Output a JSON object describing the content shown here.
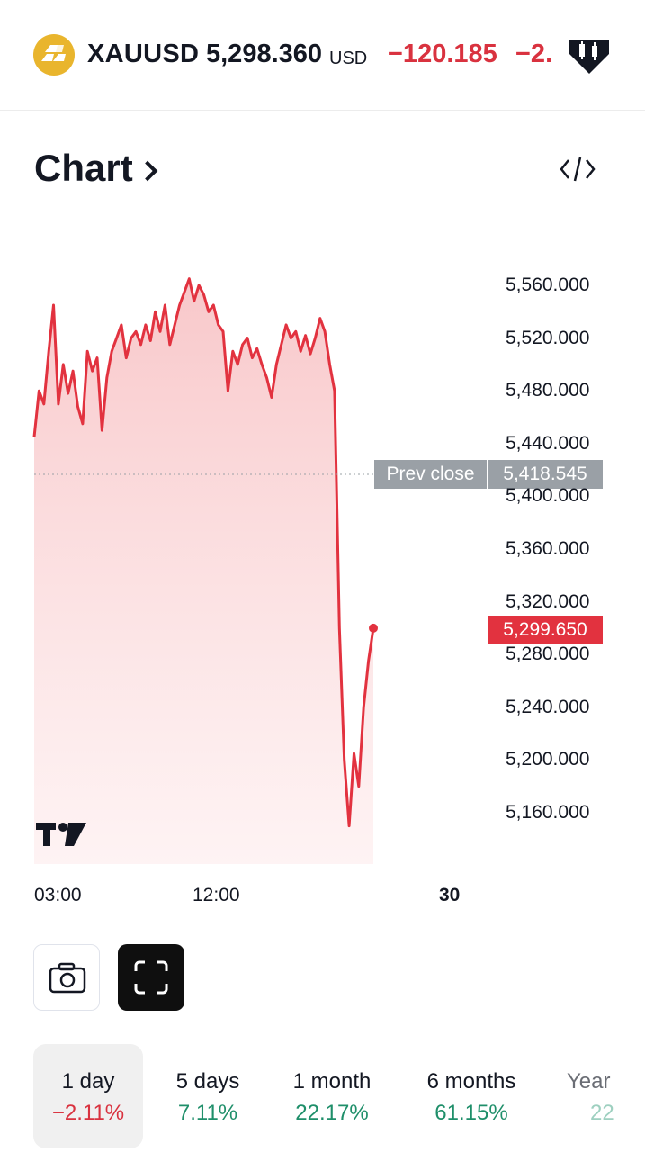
{
  "header": {
    "symbol": "XAUUSD",
    "price": "5,298.360",
    "currency": "USD",
    "change": "−120.185",
    "change_pct": "−2.",
    "icon": "gold-bars-icon",
    "badge_icon": "tradingview-candles-icon"
  },
  "section": {
    "title": "Chart",
    "embed_icon": "code-embed-icon"
  },
  "chart_data": {
    "type": "area",
    "series_color": "#e2323f",
    "y_ticks": [
      "5,560.000",
      "5,520.000",
      "5,480.000",
      "5,440.000",
      "5,400.000",
      "5,360.000",
      "5,320.000",
      "5,280.000",
      "5,240.000",
      "5,200.000",
      "5,160.000"
    ],
    "x_ticks": [
      "03:00",
      "12:00",
      "30"
    ],
    "prev_close": {
      "label": "Prev close",
      "value": "5,418.545",
      "y": 5418.545
    },
    "last": {
      "value": "5,299.650",
      "y": 5299.65
    },
    "ylim": [
      5146,
      5600
    ],
    "points": [
      [
        0,
        5445
      ],
      [
        1,
        5480
      ],
      [
        2,
        5470
      ],
      [
        3,
        5510
      ],
      [
        4,
        5545
      ],
      [
        5,
        5470
      ],
      [
        6,
        5500
      ],
      [
        7,
        5478
      ],
      [
        8,
        5495
      ],
      [
        9,
        5468
      ],
      [
        10,
        5455
      ],
      [
        11,
        5510
      ],
      [
        12,
        5495
      ],
      [
        13,
        5505
      ],
      [
        14,
        5450
      ],
      [
        15,
        5490
      ],
      [
        16,
        5510
      ],
      [
        17,
        5520
      ],
      [
        18,
        5530
      ],
      [
        19,
        5505
      ],
      [
        20,
        5520
      ],
      [
        21,
        5525
      ],
      [
        22,
        5515
      ],
      [
        23,
        5530
      ],
      [
        24,
        5518
      ],
      [
        25,
        5540
      ],
      [
        26,
        5525
      ],
      [
        27,
        5545
      ],
      [
        28,
        5515
      ],
      [
        29,
        5530
      ],
      [
        30,
        5545
      ],
      [
        31,
        5555
      ],
      [
        32,
        5565
      ],
      [
        33,
        5548
      ],
      [
        34,
        5560
      ],
      [
        35,
        5553
      ],
      [
        36,
        5540
      ],
      [
        37,
        5545
      ],
      [
        38,
        5530
      ],
      [
        39,
        5525
      ],
      [
        40,
        5480
      ],
      [
        41,
        5510
      ],
      [
        42,
        5500
      ],
      [
        43,
        5515
      ],
      [
        44,
        5520
      ],
      [
        45,
        5505
      ],
      [
        46,
        5512
      ],
      [
        47,
        5500
      ],
      [
        48,
        5490
      ],
      [
        49,
        5475
      ],
      [
        50,
        5500
      ],
      [
        51,
        5515
      ],
      [
        52,
        5530
      ],
      [
        53,
        5520
      ],
      [
        54,
        5525
      ],
      [
        55,
        5510
      ],
      [
        56,
        5522
      ],
      [
        57,
        5508
      ],
      [
        58,
        5520
      ],
      [
        59,
        5535
      ],
      [
        60,
        5525
      ],
      [
        61,
        5500
      ],
      [
        62,
        5480
      ],
      [
        63,
        5300
      ],
      [
        64,
        5200
      ],
      [
        65,
        5150
      ],
      [
        66,
        5205
      ],
      [
        67,
        5180
      ],
      [
        68,
        5240
      ],
      [
        69,
        5275
      ],
      [
        70,
        5300
      ]
    ]
  },
  "chart_toolbar": {
    "snapshot_icon": "camera-icon",
    "fullscreen_icon": "fullscreen-icon",
    "watermark": "TV"
  },
  "range_tabs": [
    {
      "label": "1 day",
      "pct": "−2.11%",
      "direction": "neg",
      "active": true
    },
    {
      "label": "5 days",
      "pct": "7.11%",
      "direction": "pos",
      "active": false
    },
    {
      "label": "1 month",
      "pct": "22.17%",
      "direction": "pos",
      "active": false
    },
    {
      "label": "6 months",
      "pct": "61.15%",
      "direction": "pos",
      "active": false
    },
    {
      "label": "Year",
      "pct": "22",
      "direction": "pos",
      "active": false
    }
  ]
}
